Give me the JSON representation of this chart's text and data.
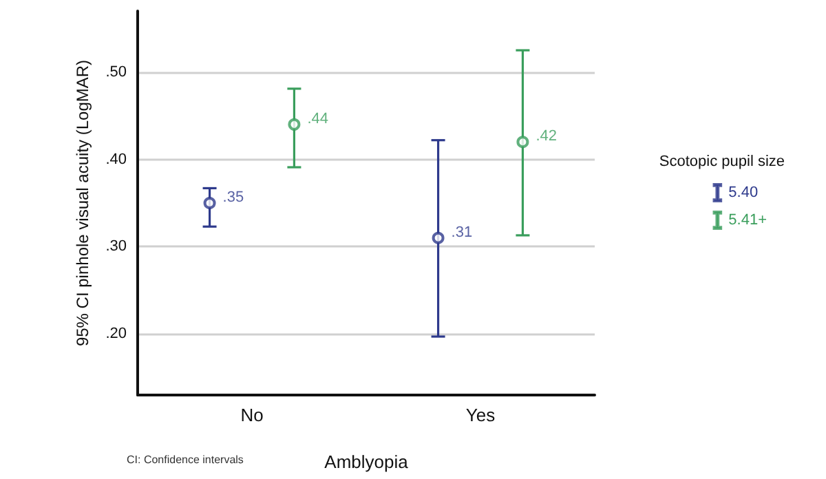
{
  "chart_data": {
    "type": "scatter",
    "xlabel": "Amblyopia",
    "ylabel": "95% CI pinhole visual acuity (LogMAR)",
    "legend_title": "Scotopic pupil size",
    "annotations": [
      "CI: Confidence intervals"
    ],
    "categories": [
      "No",
      "Yes"
    ],
    "series": [
      {
        "name": "5.40",
        "color": "#2e3a8c",
        "values": [
          0.35,
          0.31
        ],
        "errors": [
          [
            0.323,
            0.367
          ],
          [
            0.197,
            0.422
          ]
        ],
        "value_labels": [
          ".35",
          ".31"
        ]
      },
      {
        "name": "5.41+",
        "color": "#3a9e5c",
        "values": [
          0.44,
          0.42
        ],
        "errors": [
          [
            0.391,
            0.481
          ],
          [
            0.313,
            0.525
          ]
        ],
        "value_labels": [
          ".44",
          ".42"
        ]
      }
    ],
    "ylim": [
      0.13,
      0.57
    ],
    "yticks": [
      {
        "value": 0.2,
        "label": ".20"
      },
      {
        "value": 0.3,
        "label": ".30"
      },
      {
        "value": 0.4,
        "label": ".40"
      },
      {
        "value": 0.5,
        "label": ".50"
      }
    ],
    "grid": "y",
    "legend": "right",
    "marker": "circle"
  }
}
